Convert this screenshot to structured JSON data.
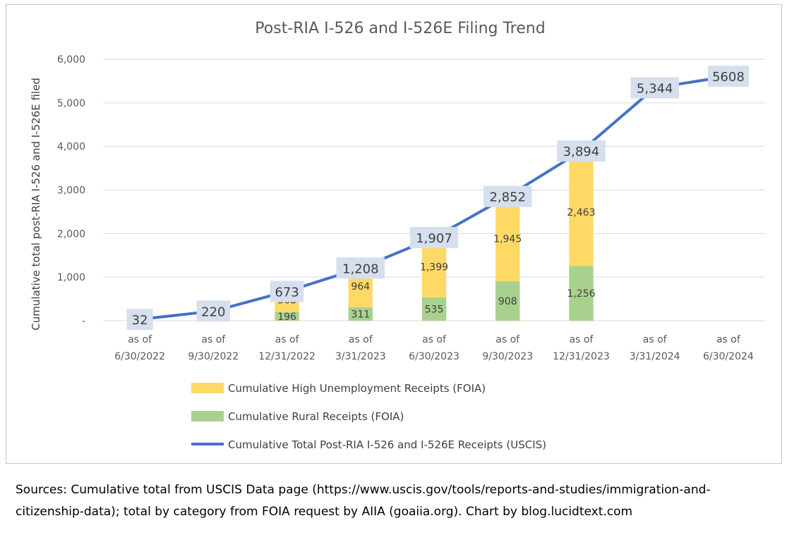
{
  "chart_data": {
    "type": "bar",
    "title": "Post-RIA I-526 and I-526E Filing Trend",
    "xlabel": "",
    "ylabel": "Cumulative total post-RIA I-526 and I-526E filed",
    "ylim": [
      0,
      6000
    ],
    "yticks": [
      0,
      1000,
      2000,
      3000,
      4000,
      5000,
      6000
    ],
    "ytick_labels": [
      "-",
      "1,000",
      "2,000",
      "3,000",
      "4,000",
      "5,000",
      "6,000"
    ],
    "grid": true,
    "stacked": true,
    "legend_position": "bottom",
    "categories": [
      [
        "as of",
        "6/30/2022"
      ],
      [
        "as of",
        "9/30/2022"
      ],
      [
        "as of",
        "12/31/2022"
      ],
      [
        "as of",
        "3/31/2023"
      ],
      [
        "as of",
        "6/30/2023"
      ],
      [
        "as of",
        "9/30/2023"
      ],
      [
        "as of",
        "12/31/2023"
      ],
      [
        "as of",
        "3/31/2024"
      ],
      [
        "as of",
        "6/30/2024"
      ]
    ],
    "series": [
      {
        "name": "Cumulative Rural Receipts (FOIA)",
        "kind": "bar",
        "color": "#a9d18e",
        "values": [
          null,
          null,
          196,
          311,
          535,
          908,
          1256,
          null,
          null
        ],
        "labels": [
          "",
          "",
          "196",
          "311",
          "535",
          "908",
          "1,256",
          "",
          ""
        ]
      },
      {
        "name": "Cumulative High Unemployment Receipts (FOIA)",
        "kind": "bar",
        "color": "#ffd966",
        "values": [
          null,
          null,
          568,
          964,
          1399,
          1945,
          2463,
          null,
          null
        ],
        "labels": [
          "",
          "",
          "568",
          "964",
          "1,399",
          "1,945",
          "2,463",
          "",
          ""
        ]
      },
      {
        "name": "Cumulative Total Post-RIA I-526 and I-526E Receipts (USCIS)",
        "kind": "line",
        "color": "#4472c4",
        "values": [
          32,
          220,
          673,
          1208,
          1907,
          2852,
          3894,
          5344,
          5608
        ],
        "labels": [
          "32",
          "220",
          "673",
          "1,208",
          "1,907",
          "2,852",
          "3,894",
          "5,344",
          "5608"
        ]
      }
    ],
    "legend_order": [
      1,
      0,
      2
    ]
  },
  "sources": {
    "text": "Sources: Cumulative total from USCIS Data page (https://www.uscis.gov/tools/reports-and-studies/immigration-and-citizenship-data); total by category from FOIA request by AIIA (goaiia.org). Chart by blog.lucidtext.com"
  }
}
